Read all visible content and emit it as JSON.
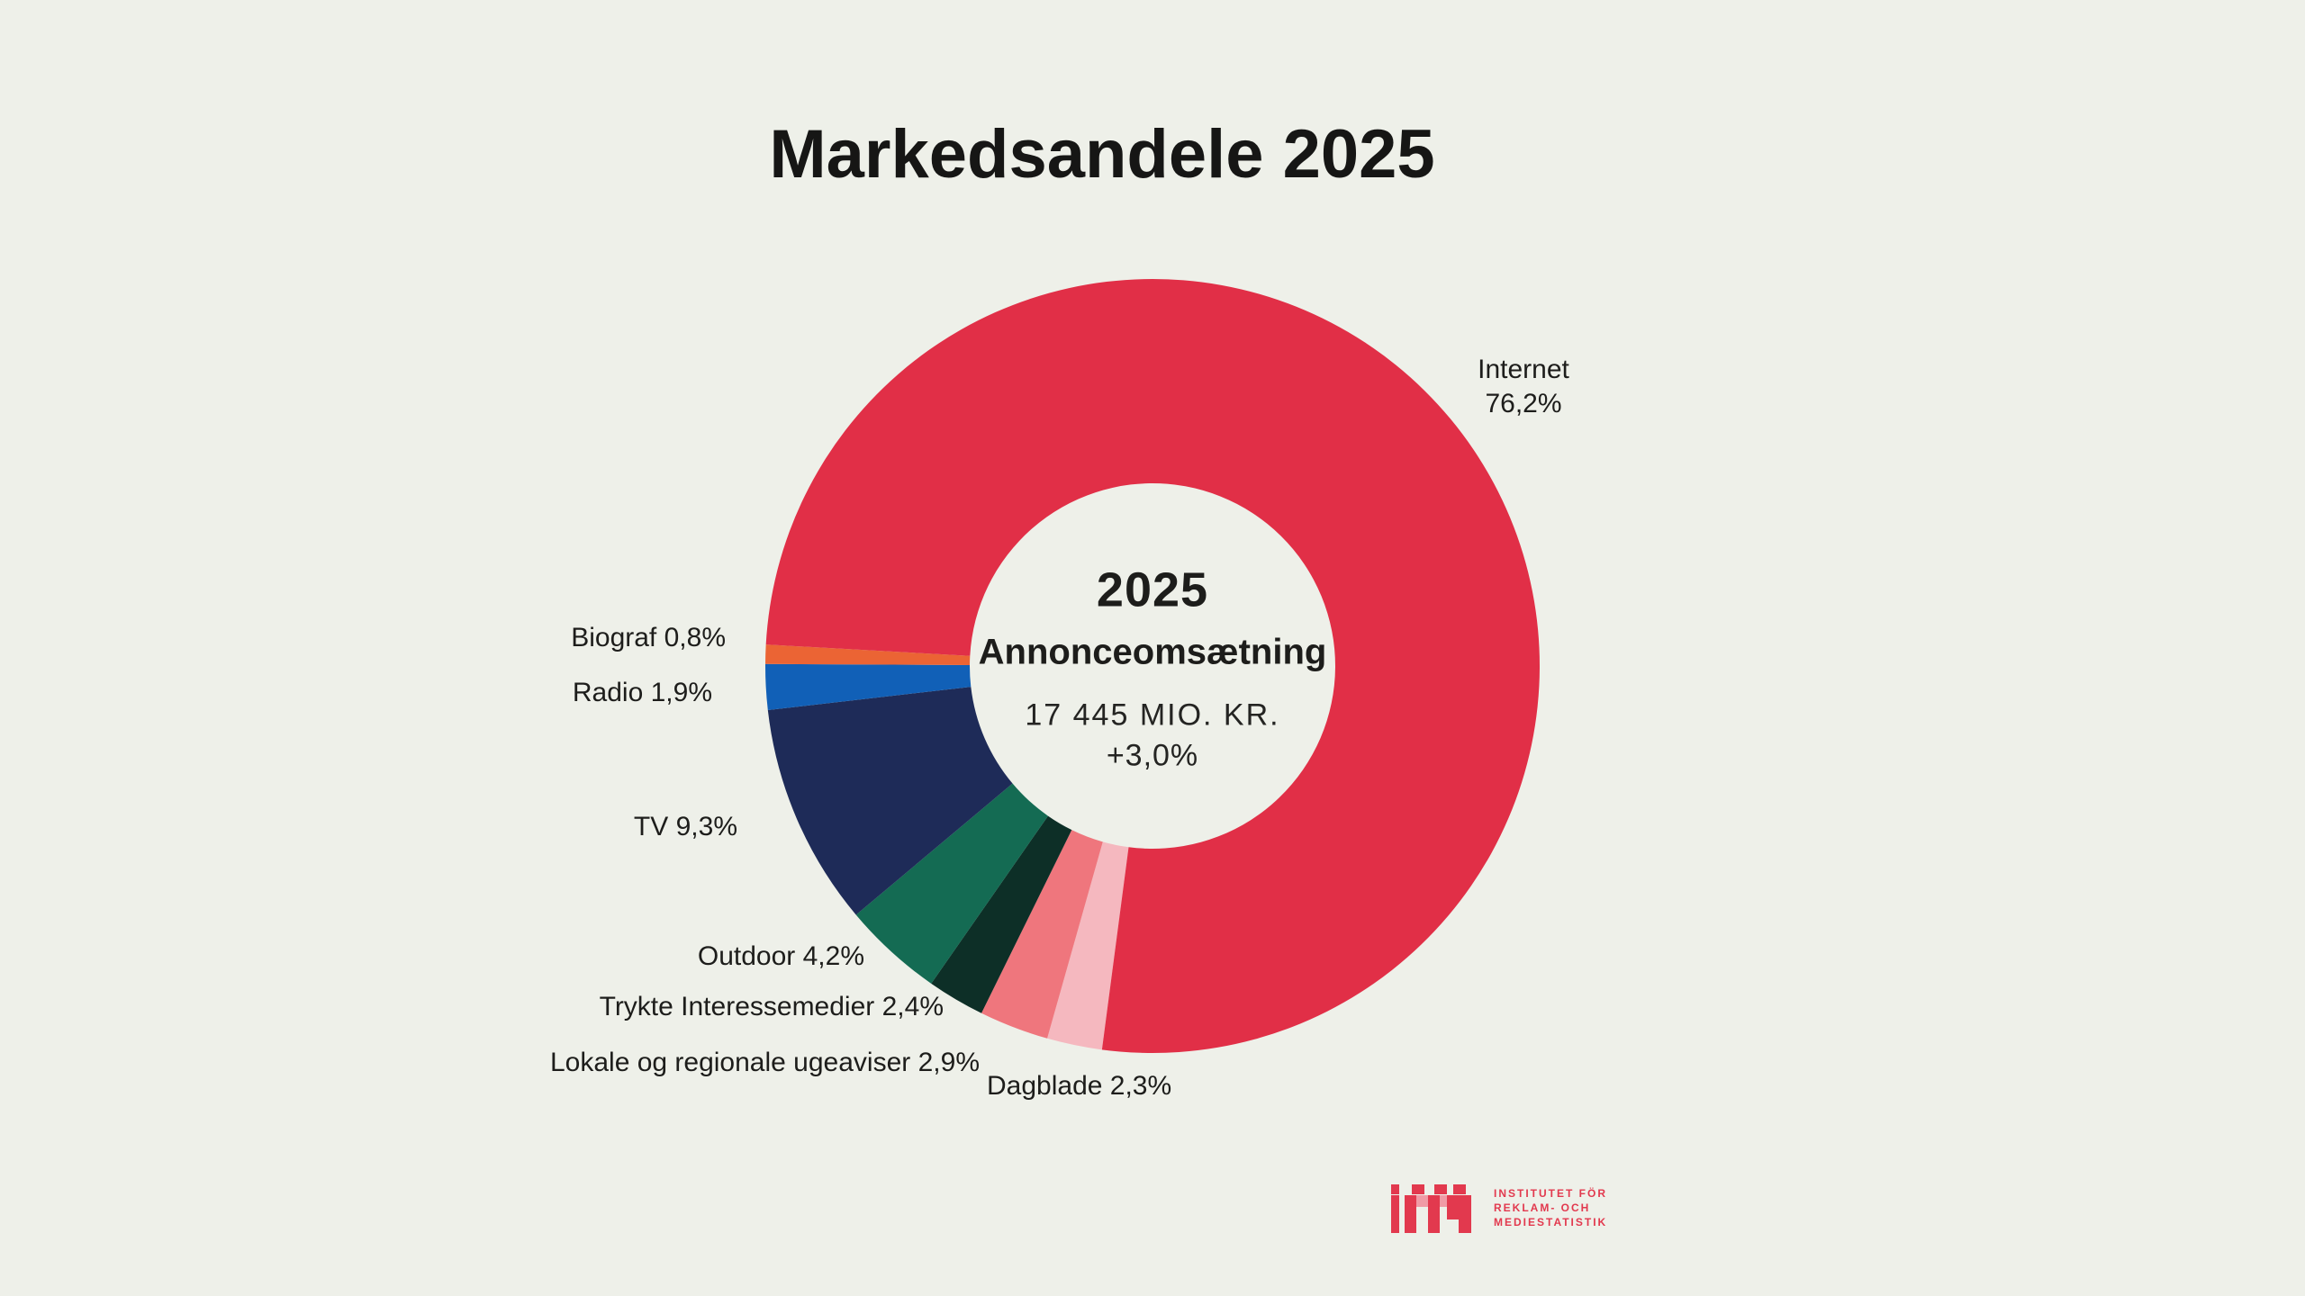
{
  "title": "Markedsandele 2025",
  "chart_data": {
    "type": "pie",
    "subtype": "donut",
    "title": "Markedsandele 2025",
    "legend_position": "labels-around-donut",
    "start_angle_deg": 187.5,
    "draw_order": "clockwise",
    "total": 100.0,
    "center": {
      "year": "2025",
      "label": "Annonceomsætning",
      "value": "17 445 MIO. KR.",
      "change": "+3,0%"
    },
    "segments": [
      {
        "name": "Dagblade",
        "share": "2,3%",
        "value": 2.3,
        "color": "#f5b8bf"
      },
      {
        "name": "Lokale og regionale ugeaviser",
        "share": "2,9%",
        "value": 2.9,
        "color": "#ef767d"
      },
      {
        "name": "Trykte Interessemedier",
        "share": "2,4%",
        "value": 2.4,
        "color": "#0d2f27"
      },
      {
        "name": "Outdoor",
        "share": "4,2%",
        "value": 4.2,
        "color": "#146b53"
      },
      {
        "name": "TV",
        "share": "9,3%",
        "value": 9.3,
        "color": "#1e2b58"
      },
      {
        "name": "Radio",
        "share": "1,9%",
        "value": 1.9,
        "color": "#1160b7"
      },
      {
        "name": "Biograf",
        "share": "0,8%",
        "value": 0.8,
        "color": "#eb6434"
      },
      {
        "name": "Internet",
        "share": "76,2%",
        "value": 76.2,
        "color": "#e12f47"
      }
    ]
  },
  "colors": {
    "background": "#eef0e9",
    "text": "#1d1d1b",
    "logo_red": "#e2394e"
  },
  "logo": {
    "mark": "irm-pixel-wordmark",
    "lines": [
      "INSTITUTET FÖR",
      "REKLAM- OCH",
      "MEDIESTATISTIK"
    ]
  }
}
